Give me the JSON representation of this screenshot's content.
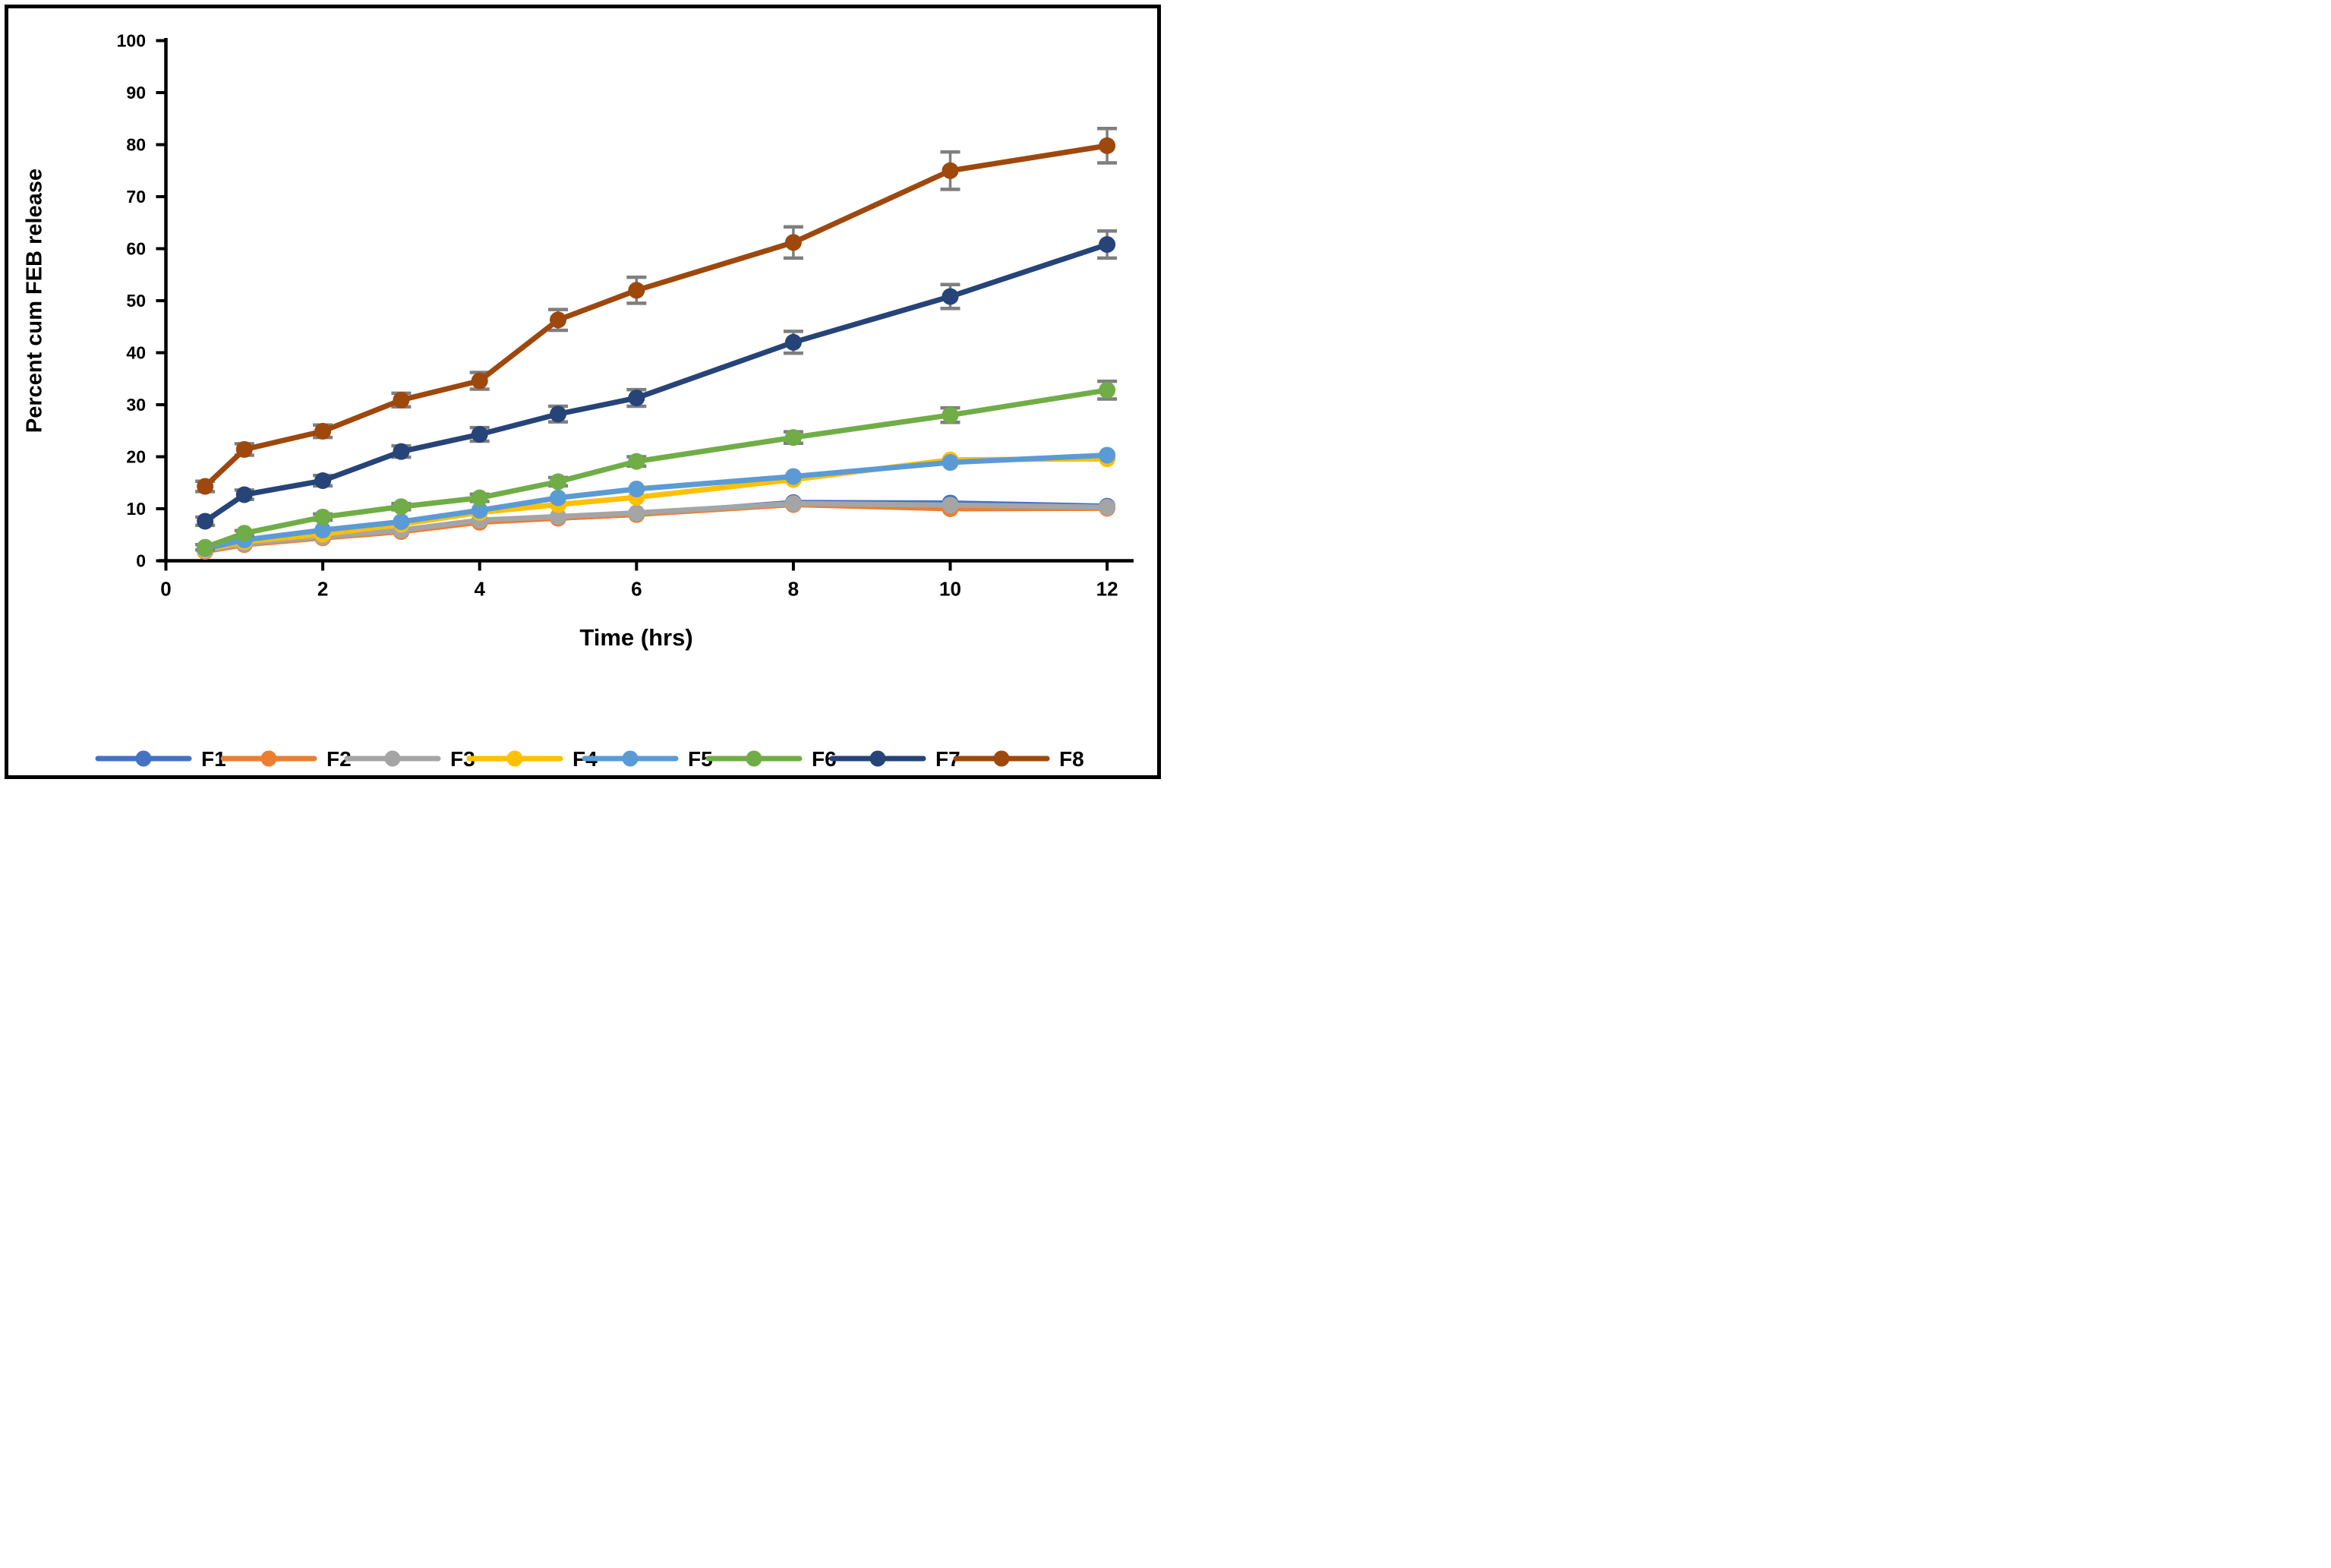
{
  "figure": {
    "background": "#ffffff",
    "border_color": "#000000",
    "error_bar_color": "#7F7F7F",
    "axis_color": "#000000"
  },
  "chart_data": {
    "type": "line",
    "title": "",
    "xlabel": "Time (hrs)",
    "ylabel": "Percent cum FEB release",
    "xlim": [
      0,
      12
    ],
    "ylim": [
      0,
      100
    ],
    "grid": false,
    "legend_position": "bottom",
    "x_tick_labels": [
      "0",
      "2",
      "4",
      "6",
      "8",
      "10",
      "12"
    ],
    "x_ticks": [
      0,
      2,
      4,
      6,
      8,
      10,
      12
    ],
    "y_tick_labels": [
      "0",
      "10",
      "20",
      "30",
      "40",
      "50",
      "60",
      "70",
      "80",
      "90",
      "100"
    ],
    "y_ticks": [
      0,
      10,
      20,
      30,
      40,
      50,
      60,
      70,
      80,
      90,
      100
    ],
    "x": [
      0.5,
      1,
      2,
      3,
      4,
      5,
      6,
      8,
      10,
      12
    ],
    "series": [
      {
        "name": "F1",
        "color": "#4472C4",
        "values": [
          1.9,
          3.2,
          4.5,
          5.8,
          7.6,
          8.2,
          8.9,
          11.2,
          11.1,
          10.5
        ],
        "errors": null
      },
      {
        "name": "F2",
        "color": "#ED7D31",
        "values": [
          1.8,
          3.1,
          4.4,
          5.6,
          7.4,
          8.2,
          8.9,
          10.8,
          10.0,
          10.1
        ],
        "errors": null
      },
      {
        "name": "F3",
        "color": "#A5A5A5",
        "values": [
          2.0,
          3.3,
          4.6,
          5.9,
          7.8,
          8.5,
          9.2,
          11.0,
          10.7,
          10.3
        ],
        "errors": null
      },
      {
        "name": "F4",
        "color": "#FFC000",
        "values": [
          2.1,
          3.7,
          5.1,
          7.0,
          9.3,
          10.8,
          12.2,
          15.6,
          19.4,
          19.6
        ],
        "errors": null
      },
      {
        "name": "F5",
        "color": "#5B9BD5",
        "values": [
          2.3,
          4.0,
          5.9,
          7.5,
          9.7,
          12.1,
          13.8,
          16.2,
          18.9,
          20.3
        ],
        "errors": null
      },
      {
        "name": "F6",
        "color": "#70AD47",
        "values": [
          2.6,
          5.3,
          8.4,
          10.4,
          12.1,
          15.2,
          19.1,
          23.7,
          28.0,
          32.8
        ],
        "errors": [
          0.5,
          0.5,
          0.6,
          0.6,
          0.7,
          0.8,
          0.9,
          1.1,
          1.4,
          1.7
        ]
      },
      {
        "name": "F7",
        "color": "#264478",
        "values": [
          7.6,
          12.7,
          15.4,
          21.0,
          24.3,
          28.2,
          31.3,
          42.0,
          50.8,
          60.8
        ],
        "errors": [
          0.8,
          0.9,
          1.0,
          1.1,
          1.3,
          1.5,
          1.6,
          2.1,
          2.3,
          2.6
        ]
      },
      {
        "name": "F8",
        "color": "#9E480E",
        "values": [
          14.3,
          21.4,
          24.9,
          30.9,
          34.6,
          46.3,
          52.0,
          61.2,
          75.0,
          79.8
        ],
        "errors": [
          1.0,
          1.1,
          1.2,
          1.3,
          1.6,
          2.0,
          2.5,
          3.0,
          3.6,
          3.3
        ]
      }
    ]
  }
}
